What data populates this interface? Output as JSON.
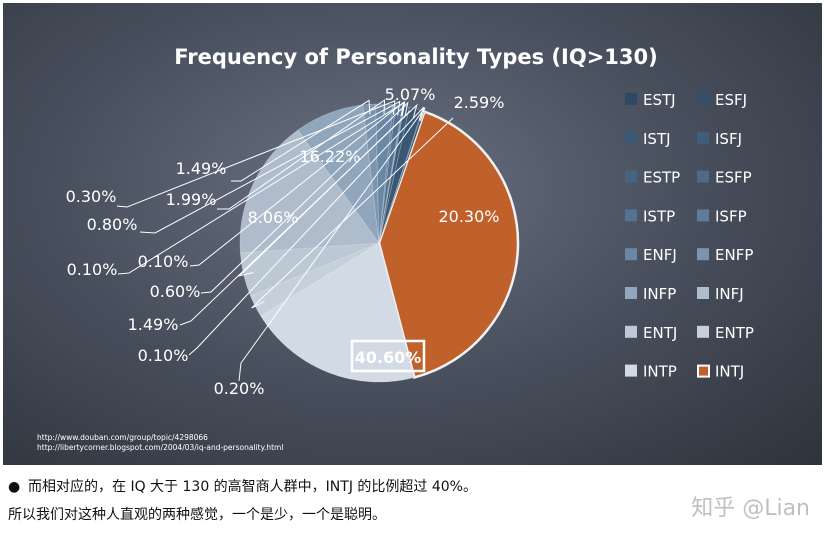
{
  "chart_data": {
    "type": "pie",
    "title": "Frequency of Personality Types (IQ>130)",
    "slices": [
      {
        "name": "INTJ",
        "value": 40.6,
        "label": "40.60%",
        "color": "#c0602a"
      },
      {
        "name": "INTP",
        "value": 20.3,
        "label": "20.30%",
        "color": "#d2dbe5"
      },
      {
        "name": "ENTP",
        "value": 2.59,
        "label": "2.59%",
        "color": "#c6d0da"
      },
      {
        "name": "ENTJ",
        "value": 5.07,
        "label": "5.07%",
        "color": "#bcc8d4"
      },
      {
        "name": "INFJ",
        "value": 16.22,
        "label": "16.22%",
        "color": "#aebccb"
      },
      {
        "name": "INFP",
        "value": 8.06,
        "label": "8.06%",
        "color": "#8fa6bd"
      },
      {
        "name": "ENFP",
        "value": 1.49,
        "label": "1.49%",
        "color": "#7b95b0"
      },
      {
        "name": "ENFJ",
        "value": 1.99,
        "label": "1.99%",
        "color": "#6a87a5"
      },
      {
        "name": "ISFP",
        "value": 0.3,
        "label": "0.30%",
        "color": "#5e7d9c"
      },
      {
        "name": "ISTP",
        "value": 0.8,
        "label": "0.80%",
        "color": "#547392"
      },
      {
        "name": "ESFP",
        "value": 0.1,
        "label": "0.10%",
        "color": "#4b6b89"
      },
      {
        "name": "ESTP",
        "value": 0.1,
        "label": "0.10%",
        "color": "#456482"
      },
      {
        "name": "ISFJ",
        "value": 0.6,
        "label": "0.60%",
        "color": "#3f5e7b"
      },
      {
        "name": "ISTJ",
        "value": 1.49,
        "label": "1.49%",
        "color": "#3a5774"
      },
      {
        "name": "ESFJ",
        "value": 0.1,
        "label": "0.10%",
        "color": "#34506c"
      },
      {
        "name": "ESTJ",
        "value": 0.2,
        "label": "0.20%",
        "color": "#2f4964"
      }
    ],
    "legend": [
      [
        "ESTJ",
        "ESFJ"
      ],
      [
        "ISTJ",
        "ISFJ"
      ],
      [
        "ESTP",
        "ESFP"
      ],
      [
        "ISTP",
        "ISFP"
      ],
      [
        "ENFJ",
        "ENFP"
      ],
      [
        "INFP",
        "INFJ"
      ],
      [
        "ENTJ",
        "ENTP"
      ],
      [
        "INTP",
        "INTJ"
      ]
    ],
    "legend_position": "right",
    "sources": [
      "http://www.douban.com/group/topic/4298066",
      "http://libertycorner.blogspot.com/2004/03/iq-and-personality.html"
    ]
  },
  "caption": {
    "bullet": "●",
    "line1": "而相对应的，在 IQ 大于 130 的高智商人群中，INTJ 的比例超过 40%。",
    "line2": "所以我们对这种人直观的两种感觉，一个是少，一个是聪明。"
  },
  "watermark": "知乎 @Lian"
}
